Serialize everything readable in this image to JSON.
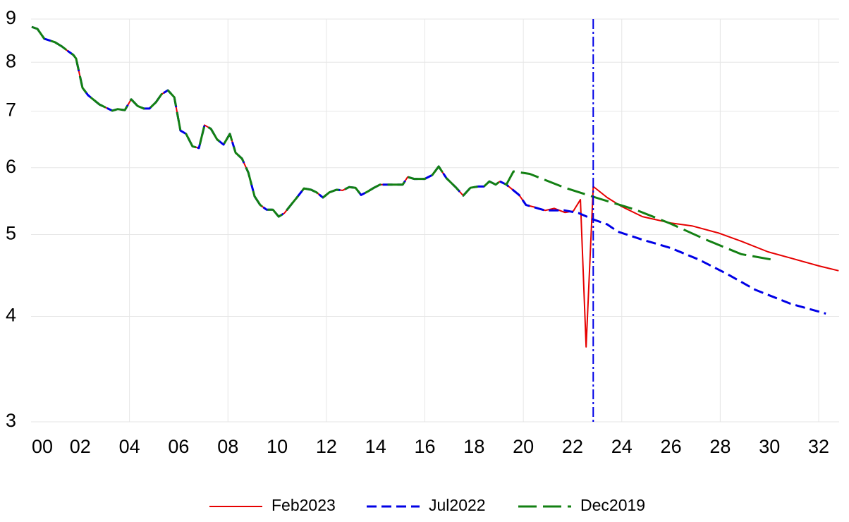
{
  "chart_data": {
    "type": "line",
    "log_y": true,
    "grid": true,
    "xlim": [
      2000,
      2032.83
    ],
    "ylim": [
      3,
      9
    ],
    "yticks": [
      3,
      4,
      5,
      6,
      7,
      8,
      9
    ],
    "xticks": [
      {
        "value": 2000,
        "label": "00"
      },
      {
        "value": 2002,
        "label": "02"
      },
      {
        "value": 2004,
        "label": "04"
      },
      {
        "value": 2006,
        "label": "06"
      },
      {
        "value": 2008,
        "label": "08"
      },
      {
        "value": 2010,
        "label": "10"
      },
      {
        "value": 2012,
        "label": "12"
      },
      {
        "value": 2014,
        "label": "14"
      },
      {
        "value": 2016,
        "label": "16"
      },
      {
        "value": 2018,
        "label": "18"
      },
      {
        "value": 2020,
        "label": "20"
      },
      {
        "value": 2022,
        "label": "22"
      },
      {
        "value": 2024,
        "label": "24"
      },
      {
        "value": 2026,
        "label": "26"
      },
      {
        "value": 2028,
        "label": "28"
      },
      {
        "value": 2030,
        "label": "30"
      },
      {
        "value": 2032,
        "label": "32"
      }
    ],
    "xgrid": [
      2004,
      2008,
      2012,
      2016,
      2020,
      2024,
      2028,
      2032
    ],
    "legend": "bottom",
    "vline": {
      "x": 2022.84,
      "color": "#0000e6"
    },
    "series": [
      {
        "name": "Feb2023",
        "color": "#e60000",
        "style": "solid",
        "x": [
          2000.03,
          2000.26,
          2000.54,
          2000.97,
          2001.26,
          2001.49,
          2001.72,
          2001.83,
          2002.09,
          2002.32,
          2002.78,
          2003.3,
          2003.52,
          2003.81,
          2004.07,
          2004.33,
          2004.58,
          2004.81,
          2005.07,
          2005.3,
          2005.56,
          2005.82,
          2006.07,
          2006.3,
          2006.56,
          2006.82,
          2007.05,
          2007.31,
          2007.56,
          2007.82,
          2008.08,
          2008.31,
          2008.57,
          2008.83,
          2009.08,
          2009.31,
          2009.57,
          2009.83,
          2010.06,
          2010.29,
          2010.6,
          2010.8,
          2011.09,
          2011.38,
          2011.6,
          2011.86,
          2012.12,
          2012.41,
          2012.66,
          2012.92,
          2013.18,
          2013.41,
          2013.67,
          2013.93,
          2014.18,
          2014.44,
          2014.7,
          2015.1,
          2015.3,
          2015.56,
          2015.99,
          2016.3,
          2016.56,
          2016.88,
          2017.25,
          2017.56,
          2017.85,
          2018.17,
          2018.4,
          2018.62,
          2018.88,
          2019.05,
          2019.31,
          2019.83,
          2020.11,
          2020.54,
          2020.89,
          2021.26,
          2021.69,
          2022.03,
          2022.32,
          2022.55,
          2022.84,
          2023.41,
          2023.98,
          2024.84,
          2025.99,
          2026.85,
          2027.94,
          2028.85,
          2029.94,
          2030.86,
          2032.01,
          2032.81
        ],
        "values": [
          8.81,
          8.76,
          8.53,
          8.45,
          8.35,
          8.25,
          8.16,
          8.08,
          7.46,
          7.31,
          7.13,
          7.01,
          7.04,
          7.02,
          7.23,
          7.1,
          7.05,
          7.05,
          7.17,
          7.33,
          7.41,
          7.27,
          6.64,
          6.58,
          6.36,
          6.33,
          6.74,
          6.67,
          6.48,
          6.39,
          6.58,
          6.25,
          6.15,
          5.92,
          5.55,
          5.42,
          5.35,
          5.35,
          5.25,
          5.3,
          5.44,
          5.53,
          5.67,
          5.65,
          5.61,
          5.53,
          5.61,
          5.65,
          5.64,
          5.69,
          5.68,
          5.57,
          5.62,
          5.68,
          5.73,
          5.73,
          5.73,
          5.73,
          5.85,
          5.82,
          5.82,
          5.88,
          6.02,
          5.83,
          5.69,
          5.56,
          5.68,
          5.7,
          5.7,
          5.78,
          5.73,
          5.78,
          5.73,
          5.57,
          5.42,
          5.38,
          5.34,
          5.37,
          5.31,
          5.33,
          5.5,
          3.68,
          5.7,
          5.53,
          5.4,
          5.25,
          5.16,
          5.12,
          5.02,
          4.91,
          4.77,
          4.69,
          4.59,
          4.53
        ]
      },
      {
        "name": "Jul2022",
        "color": "#0000e6",
        "style": "dashed",
        "x": [
          2000.03,
          2000.26,
          2000.54,
          2000.97,
          2001.26,
          2001.49,
          2001.72,
          2001.83,
          2002.09,
          2002.32,
          2002.78,
          2003.3,
          2003.52,
          2003.81,
          2004.07,
          2004.33,
          2004.58,
          2004.81,
          2005.07,
          2005.3,
          2005.56,
          2005.82,
          2006.07,
          2006.3,
          2006.56,
          2006.82,
          2007.05,
          2007.31,
          2007.56,
          2007.82,
          2008.08,
          2008.31,
          2008.57,
          2008.83,
          2009.08,
          2009.31,
          2009.57,
          2009.83,
          2010.06,
          2010.29,
          2010.6,
          2010.8,
          2011.09,
          2011.38,
          2011.6,
          2011.86,
          2012.12,
          2012.41,
          2012.66,
          2012.92,
          2013.18,
          2013.41,
          2013.67,
          2013.93,
          2014.18,
          2014.44,
          2014.7,
          2015.1,
          2015.3,
          2015.56,
          2015.99,
          2016.3,
          2016.56,
          2016.88,
          2017.25,
          2017.56,
          2017.85,
          2018.17,
          2018.4,
          2018.62,
          2018.88,
          2019.05,
          2019.31,
          2019.83,
          2020.11,
          2020.89,
          2021.69,
          2022.26,
          2022.84,
          2023.41,
          2023.84,
          2024.84,
          2025.99,
          2027.13,
          2028.28,
          2029.43,
          2030.86,
          2032.29
        ],
        "values": [
          8.81,
          8.76,
          8.53,
          8.45,
          8.35,
          8.25,
          8.16,
          8.08,
          7.46,
          7.31,
          7.13,
          7.01,
          7.04,
          7.02,
          7.23,
          7.1,
          7.05,
          7.05,
          7.17,
          7.33,
          7.41,
          7.27,
          6.64,
          6.58,
          6.36,
          6.33,
          6.74,
          6.67,
          6.48,
          6.39,
          6.58,
          6.25,
          6.15,
          5.92,
          5.55,
          5.42,
          5.35,
          5.35,
          5.25,
          5.3,
          5.44,
          5.53,
          5.67,
          5.65,
          5.61,
          5.53,
          5.61,
          5.65,
          5.64,
          5.69,
          5.68,
          5.57,
          5.62,
          5.68,
          5.73,
          5.73,
          5.73,
          5.73,
          5.85,
          5.82,
          5.82,
          5.88,
          6.02,
          5.83,
          5.69,
          5.56,
          5.68,
          5.7,
          5.7,
          5.78,
          5.73,
          5.78,
          5.73,
          5.57,
          5.42,
          5.34,
          5.34,
          5.3,
          5.21,
          5.14,
          5.04,
          4.93,
          4.82,
          4.67,
          4.49,
          4.3,
          4.14,
          4.03
        ]
      },
      {
        "name": "Dec2019",
        "color": "#138013",
        "style": "longdash",
        "x": [
          2000.03,
          2000.26,
          2000.54,
          2000.97,
          2001.26,
          2001.49,
          2001.72,
          2001.83,
          2002.09,
          2002.32,
          2002.78,
          2003.3,
          2003.52,
          2003.81,
          2004.07,
          2004.33,
          2004.58,
          2004.81,
          2005.07,
          2005.3,
          2005.56,
          2005.82,
          2006.07,
          2006.3,
          2006.56,
          2006.82,
          2007.05,
          2007.31,
          2007.56,
          2007.82,
          2008.08,
          2008.31,
          2008.57,
          2008.83,
          2009.08,
          2009.31,
          2009.57,
          2009.83,
          2010.06,
          2010.29,
          2010.6,
          2010.8,
          2011.09,
          2011.38,
          2011.6,
          2011.86,
          2012.12,
          2012.41,
          2012.66,
          2012.92,
          2013.18,
          2013.41,
          2013.67,
          2013.93,
          2014.18,
          2014.44,
          2014.7,
          2015.1,
          2015.3,
          2015.56,
          2015.99,
          2016.3,
          2016.56,
          2016.88,
          2017.25,
          2017.56,
          2017.85,
          2018.17,
          2018.4,
          2018.62,
          2018.88,
          2019.05,
          2019.31,
          2019.6,
          2020.26,
          2021.69,
          2023.12,
          2024.56,
          2025.99,
          2027.42,
          2028.85,
          2030.09
        ],
        "values": [
          8.81,
          8.76,
          8.53,
          8.45,
          8.35,
          8.25,
          8.16,
          8.08,
          7.46,
          7.31,
          7.13,
          7.01,
          7.04,
          7.02,
          7.23,
          7.1,
          7.05,
          7.05,
          7.17,
          7.33,
          7.41,
          7.27,
          6.64,
          6.58,
          6.36,
          6.33,
          6.74,
          6.67,
          6.48,
          6.39,
          6.58,
          6.25,
          6.15,
          5.92,
          5.55,
          5.42,
          5.35,
          5.35,
          5.25,
          5.3,
          5.44,
          5.53,
          5.67,
          5.65,
          5.61,
          5.53,
          5.61,
          5.65,
          5.64,
          5.69,
          5.68,
          5.57,
          5.62,
          5.68,
          5.73,
          5.73,
          5.73,
          5.73,
          5.85,
          5.82,
          5.82,
          5.88,
          6.02,
          5.83,
          5.69,
          5.56,
          5.68,
          5.7,
          5.7,
          5.78,
          5.73,
          5.78,
          5.73,
          5.94,
          5.9,
          5.68,
          5.51,
          5.35,
          5.15,
          4.93,
          4.74,
          4.67
        ]
      }
    ]
  }
}
